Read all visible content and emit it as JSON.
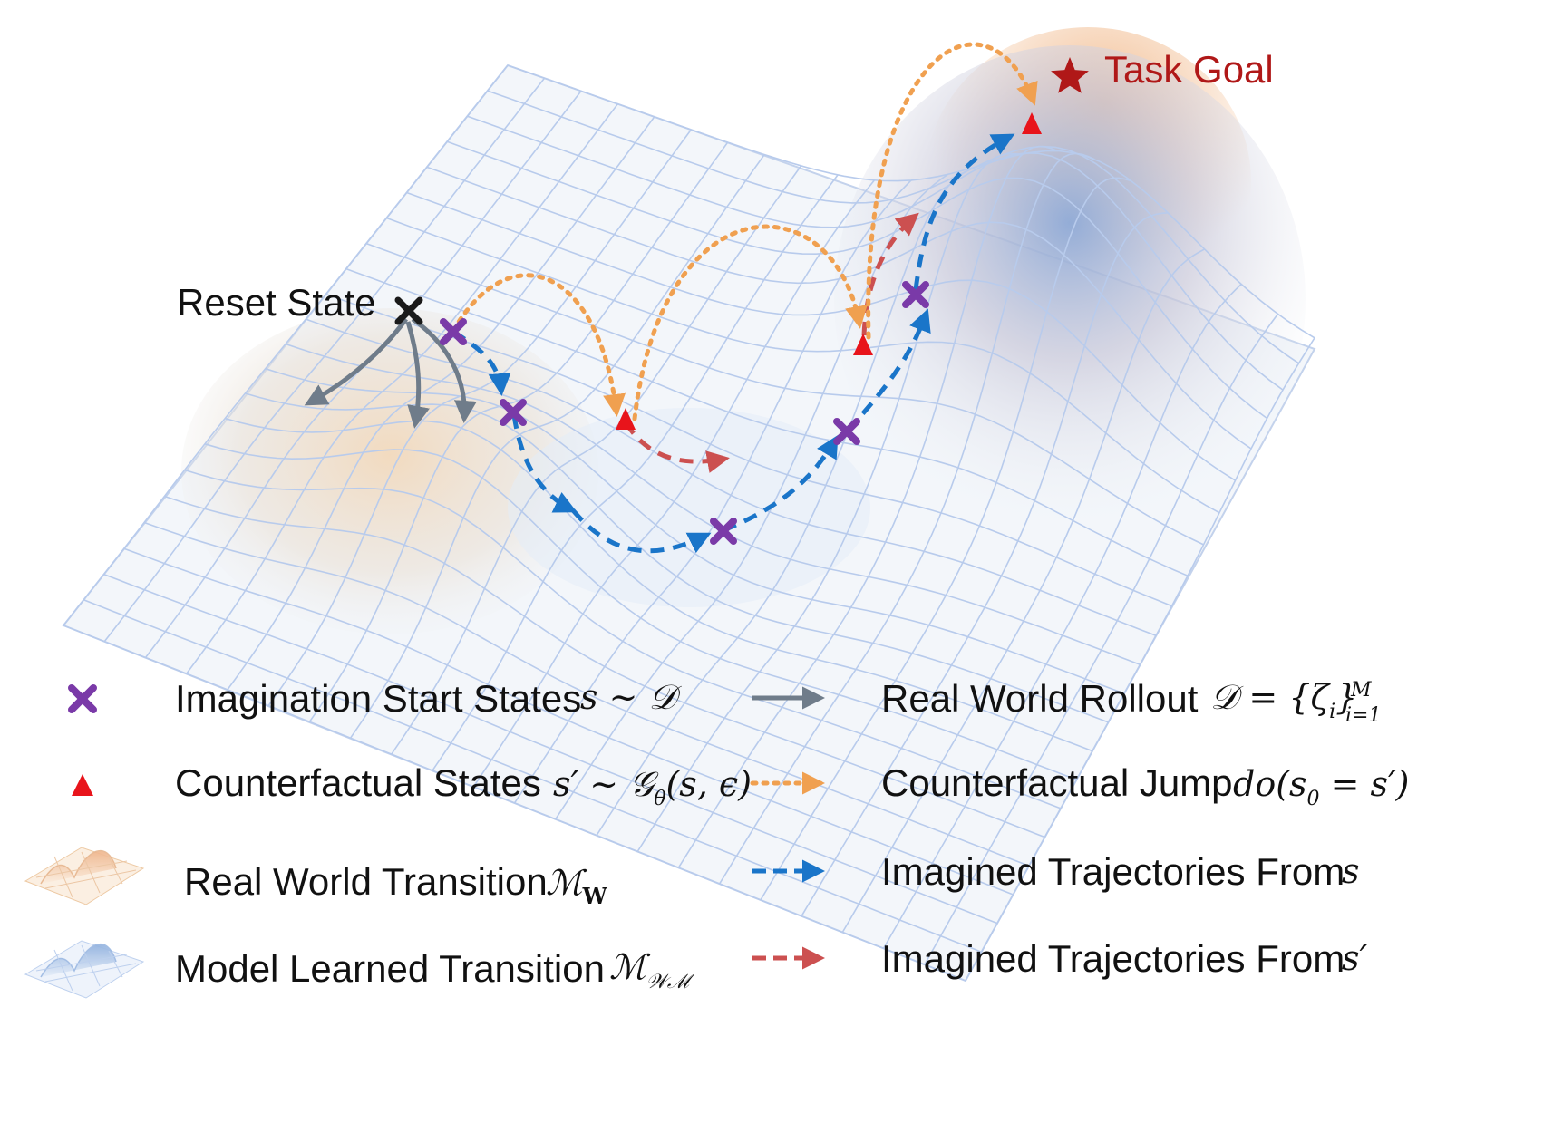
{
  "colors": {
    "start_state": "#7a3aa8",
    "counterfactual_state": "#e8141b",
    "real_rollout": "#6f7c8a",
    "counterfactual_jump": "#f0a050",
    "imagined_from_s": "#1a75c9",
    "imagined_from_s_prime": "#cc5050",
    "goal": "#b01818",
    "reset": "#1a1a1a",
    "real_surface": "#f4c99a",
    "model_surface": "#a8c4e8",
    "grid": "#b8cbec"
  },
  "labels": {
    "reset_state": "Reset State",
    "task_goal": "Task Goal"
  },
  "legend": {
    "start_states": {
      "text": "Imagination Start States",
      "math": "s ~ 𝒟",
      "icon": "purple-cross-icon"
    },
    "counterfactual_states": {
      "text": "Counterfactual States",
      "math": "s′ ~ 𝒢θ(s, ϵ)",
      "math_main": "s′ ~ 𝒢",
      "math_sub": "θ",
      "math_tail": "(s, ϵ)",
      "icon": "red-triangle-icon"
    },
    "real_transition": {
      "text": "Real World Transition",
      "math_main": "ℳ",
      "math_sub": "W",
      "icon": "orange-surface-icon"
    },
    "model_transition": {
      "text": "Model Learned Transition",
      "math_main": "ℳ",
      "math_sub": "𝒲ℳ",
      "icon": "blue-surface-icon"
    },
    "real_rollout": {
      "text": "Real World Rollout",
      "math_main": "𝒟 = {ζ",
      "math_sub_i": "i",
      "math_close": "}",
      "math_sup": "M",
      "math_sub": "i=1",
      "icon": "gray-arrow-icon"
    },
    "counterfactual_jump": {
      "text": "Counterfactual Jump",
      "math_main": "do(s",
      "math_sub": "0",
      "math_tail": " = s′)",
      "icon": "orange-dotted-arrow-icon"
    },
    "imagined_from_s": {
      "text": "Imagined Trajectories From",
      "math": "s",
      "icon": "blue-dashed-arrow-icon"
    },
    "imagined_from_s_prime": {
      "text": "Imagined Trajectories From",
      "math": "s′",
      "icon": "red-dashed-arrow-icon"
    }
  }
}
